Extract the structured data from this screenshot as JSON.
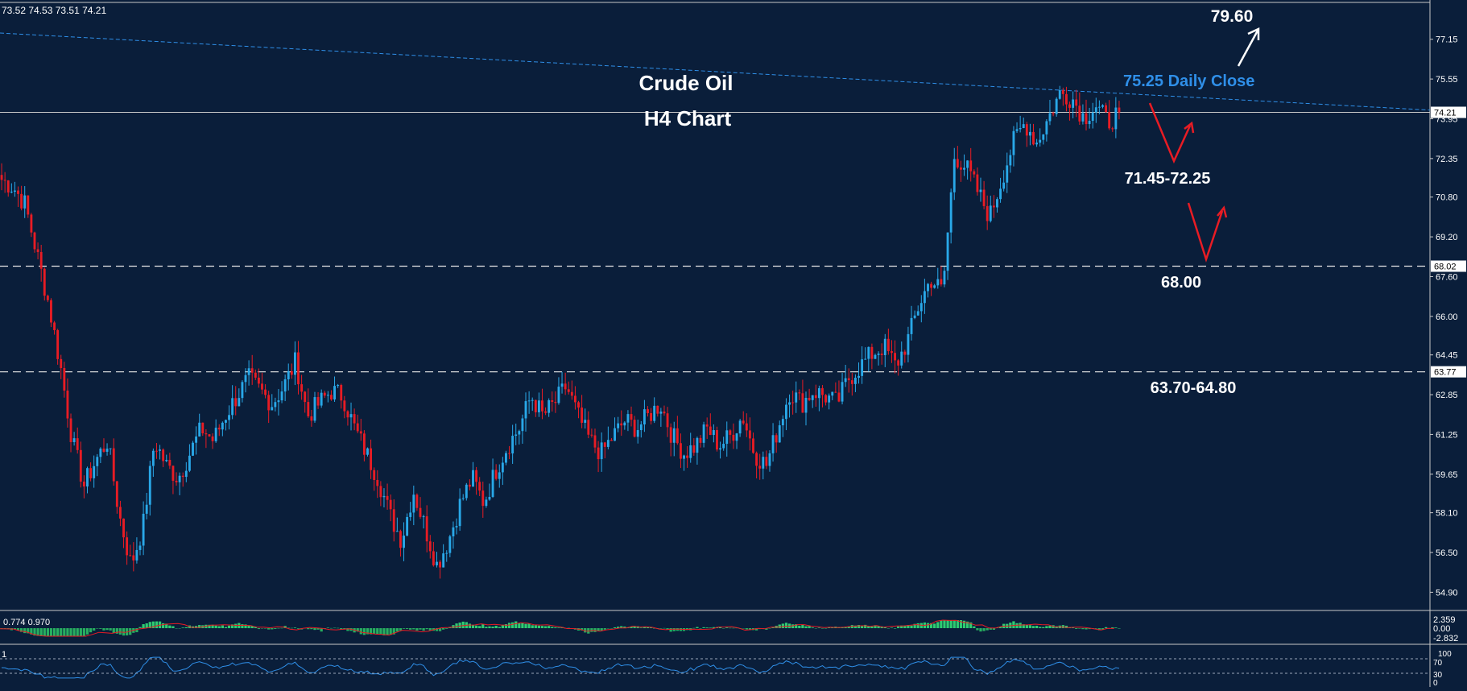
{
  "header": {
    "ohlc_text": "73.52 74.53 73.51 74.21"
  },
  "annotations": {
    "title_line1": "Crude Oil",
    "title_line2": "H4 Chart",
    "target_high": "79.60",
    "daily_close": "75.25 Daily Close",
    "support_zone_1": "71.45-72.25",
    "support_2": "68.00",
    "support_zone_3": "63.70-64.80"
  },
  "colors": {
    "background": "#0a1e3a",
    "bull_candle": "#29a8e8",
    "bear_candle": "#e81c24",
    "daily_close_text": "#2f8fe8",
    "annotation_text": "#ffffff",
    "arrow_red": "#e81c24",
    "arrow_white": "#ffffff"
  },
  "chart_data": [
    {
      "type": "candlestick",
      "price_axis_ticks": [
        "77.15",
        "75.55",
        "73.95",
        "72.35",
        "70.80",
        "69.20",
        "67.60",
        "66.00",
        "64.45",
        "62.85",
        "61.25",
        "59.65",
        "58.10",
        "56.50",
        "54.90"
      ],
      "price_axis_markers": [
        {
          "label": "74.21",
          "value": 74.21
        },
        {
          "label": "68.02",
          "value": 68.02
        },
        {
          "label": "63.77",
          "value": 63.77
        }
      ],
      "ylim": [
        54.2,
        78.6
      ],
      "last_price": 74.21,
      "horizontal_levels": [
        68.02,
        63.77
      ],
      "trendline_daily_close": {
        "start": 77.4,
        "end": 74.3
      },
      "approx_path_closes": [
        71.5,
        71.2,
        70.5,
        68.5,
        66.5,
        64.0,
        61.0,
        59.2,
        60.2,
        61.0,
        58.0,
        56.0,
        57.5,
        61.0,
        60.0,
        59.5,
        60.5,
        61.5,
        61.0,
        62.0,
        62.8,
        63.5,
        63.0,
        62.5,
        63.2,
        64.2,
        62.0,
        62.5,
        63.0,
        62.8,
        61.5,
        60.5,
        59.5,
        58.0,
        57.0,
        59.0,
        57.5,
        56.0,
        57.0,
        58.5,
        59.5,
        58.5,
        59.8,
        60.8,
        61.5,
        62.8,
        62.0,
        62.5,
        63.2,
        62.0,
        61.0,
        60.5,
        61.2,
        61.8,
        61.5,
        62.0,
        62.5,
        61.2,
        60.5,
        60.8,
        61.5,
        60.8,
        61.2,
        62.0,
        60.5,
        60.0,
        61.5,
        63.0,
        62.5,
        63.0,
        62.8,
        62.5,
        63.5,
        64.0,
        64.5,
        64.8,
        64.0,
        65.0,
        66.5,
        67.5,
        67.0,
        72.5,
        72.0,
        71.0,
        70.0,
        71.5,
        73.0,
        73.8,
        73.0,
        74.0,
        75.0,
        74.8,
        74.0,
        74.5,
        73.8,
        74.21
      ],
      "macd_indicator": {
        "label": "0.774 0.970",
        "scale_ticks": [
          "2.359",
          "0.00",
          "-2.832"
        ]
      },
      "rsi_indicator": {
        "label": "1",
        "scale_ticks": [
          "100",
          "70",
          "30",
          "0"
        ]
      }
    }
  ]
}
